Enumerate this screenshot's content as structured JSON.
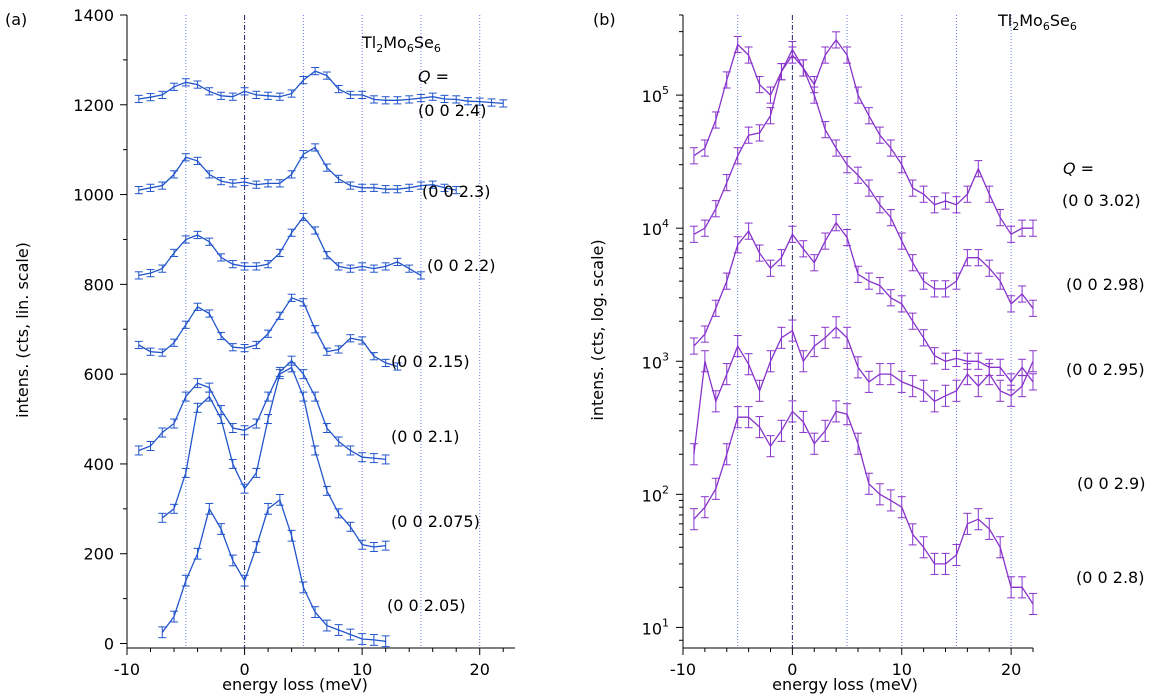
{
  "chart_data": [
    {
      "type": "line",
      "panel_label": "(a)",
      "formula": {
        "parts": [
          "Tl",
          "2",
          "Mo",
          "6",
          "Se",
          "6"
        ]
      },
      "q_label": "Q",
      "q_equals": "=",
      "xlabel": "energy loss (meV)",
      "ylabel": "intens. (cts, lin. scale)",
      "xlim": [
        -10,
        23
      ],
      "ylim": [
        -10,
        1400
      ],
      "y_scale": "linear",
      "x_ticks": [
        -10,
        0,
        10,
        20
      ],
      "y_ticks": [
        0,
        200,
        400,
        600,
        800,
        1000,
        1200,
        1400
      ],
      "dotted_verticals": [
        -5,
        5,
        10,
        15,
        20
      ],
      "dashdot_vertical": 0,
      "color": "#2255cc",
      "series": [
        {
          "name": "(0 0 2.4)",
          "x": [
            -9,
            -8,
            -7,
            -6,
            -5,
            -4,
            -3,
            -2,
            -1,
            0,
            1,
            2,
            3,
            4,
            5,
            6,
            7,
            8,
            9,
            10,
            11,
            12,
            13,
            14,
            15,
            16,
            17,
            18,
            19,
            20,
            21,
            22
          ],
          "y": [
            1213,
            1217,
            1222,
            1240,
            1250,
            1245,
            1230,
            1220,
            1218,
            1230,
            1222,
            1220,
            1218,
            1225,
            1255,
            1275,
            1265,
            1235,
            1222,
            1222,
            1212,
            1210,
            1210,
            1212,
            1215,
            1218,
            1213,
            1212,
            1208,
            1207,
            1205,
            1203
          ],
          "err": 8
        },
        {
          "name": "(0 0 2.3)",
          "x": [
            -9,
            -8,
            -7,
            -6,
            -5,
            -4,
            -3,
            -2,
            -1,
            0,
            1,
            2,
            3,
            4,
            5,
            6,
            7,
            8,
            9,
            10,
            11,
            12,
            13,
            14,
            15,
            16,
            17,
            18
          ],
          "y": [
            1010,
            1015,
            1020,
            1045,
            1083,
            1075,
            1045,
            1030,
            1025,
            1028,
            1022,
            1025,
            1025,
            1045,
            1090,
            1105,
            1060,
            1035,
            1020,
            1015,
            1015,
            1012,
            1012,
            1015,
            1020,
            1022,
            1015,
            1010
          ],
          "err": 8
        },
        {
          "name": "(0 0 2.2)",
          "x": [
            -9,
            -8,
            -7,
            -6,
            -5,
            -4,
            -3,
            -2,
            -1,
            0,
            1,
            2,
            3,
            4,
            5,
            6,
            7,
            8,
            9,
            10,
            11,
            12,
            13,
            14,
            15
          ],
          "y": [
            820,
            825,
            835,
            870,
            900,
            910,
            895,
            860,
            845,
            840,
            840,
            845,
            870,
            915,
            950,
            920,
            865,
            840,
            835,
            840,
            835,
            840,
            850,
            835,
            820
          ],
          "err": 8
        },
        {
          "name": "(0 0 2.15)",
          "x": [
            -9,
            -8,
            -7,
            -6,
            -5,
            -4,
            -3,
            -2,
            -1,
            0,
            1,
            2,
            3,
            4,
            5,
            6,
            7,
            8,
            9,
            10,
            11,
            12,
            13
          ],
          "y": [
            665,
            650,
            648,
            670,
            710,
            750,
            735,
            685,
            660,
            658,
            665,
            690,
            730,
            770,
            760,
            700,
            650,
            655,
            680,
            675,
            640,
            625,
            617
          ],
          "err": 8
        },
        {
          "name": "(0 0 2.1)",
          "x": [
            -9,
            -8,
            -7,
            -6,
            -5,
            -4,
            -3,
            -2,
            -1,
            0,
            1,
            2,
            3,
            4,
            5,
            6,
            7,
            8,
            9,
            10,
            11,
            12
          ],
          "y": [
            430,
            440,
            470,
            490,
            550,
            580,
            570,
            520,
            480,
            475,
            490,
            550,
            605,
            630,
            600,
            550,
            480,
            450,
            430,
            415,
            413,
            410
          ],
          "err": 10
        },
        {
          "name": "(0 0 2.075)",
          "x": [
            -7,
            -6,
            -5,
            -4,
            -3,
            -2,
            -1,
            0,
            1,
            2,
            3,
            4,
            5,
            6,
            7,
            8,
            9,
            10,
            11,
            12
          ],
          "y": [
            280,
            300,
            380,
            525,
            550,
            500,
            400,
            345,
            380,
            500,
            600,
            615,
            550,
            430,
            340,
            290,
            260,
            220,
            215,
            218
          ],
          "err": 10
        },
        {
          "name": "(0 0 2.05)",
          "x": [
            -7,
            -6,
            -5,
            -4,
            -3,
            -2,
            -1,
            0,
            1,
            2,
            3,
            4,
            5,
            6,
            7,
            8,
            9,
            10,
            11,
            12
          ],
          "y": [
            25,
            60,
            140,
            200,
            300,
            255,
            185,
            140,
            215,
            300,
            320,
            240,
            125,
            70,
            40,
            30,
            20,
            10,
            8,
            5
          ],
          "err": 12
        }
      ]
    },
    {
      "type": "line",
      "panel_label": "(b)",
      "formula": {
        "parts": [
          "Tl",
          "2",
          "Mo",
          "6",
          "Se",
          "6"
        ]
      },
      "q_label": "Q",
      "q_equals": "=",
      "xlabel": "energy loss (meV)",
      "ylabel": "intens. (cts, log. scale)",
      "xlim": [
        -10,
        22
      ],
      "ylim": [
        7,
        400000
      ],
      "y_scale": "log",
      "x_ticks": [
        -10,
        0,
        10,
        20
      ],
      "y_ticks": [
        10,
        100,
        1000,
        10000,
        100000
      ],
      "y_tick_exponents": [
        "1",
        "2",
        "3",
        "4",
        "5"
      ],
      "y_tick_base": "10",
      "dotted_verticals": [
        -5,
        5,
        10,
        15,
        20
      ],
      "dashdot_vertical": 0,
      "color": "#8833cc",
      "series": [
        {
          "name": "(0 0 3.02)",
          "x": [
            -9,
            -8,
            -7,
            -6,
            -5,
            -4,
            -3,
            -2,
            -1,
            0,
            1,
            2,
            3,
            4,
            5,
            6,
            7,
            8,
            9,
            10,
            11,
            12,
            13,
            14,
            15,
            16,
            17,
            18,
            19,
            20,
            21,
            22
          ],
          "y": [
            35000,
            40000,
            65000,
            130000,
            240000,
            200000,
            120000,
            100000,
            150000,
            200000,
            160000,
            120000,
            200000,
            260000,
            200000,
            100000,
            70000,
            50000,
            40000,
            30000,
            20000,
            18000,
            15000,
            16000,
            15000,
            18000,
            28000,
            18000,
            12000,
            9000,
            10000,
            10000
          ],
          "err": 0.15
        },
        {
          "name": "(0 0 2.98)",
          "x": [
            -9,
            -8,
            -7,
            -6,
            -5,
            -4,
            -3,
            -2,
            -1,
            0,
            1,
            2,
            3,
            4,
            5,
            6,
            7,
            8,
            9,
            10,
            11,
            12,
            13,
            14,
            15,
            16,
            17,
            18,
            19,
            20,
            21,
            22
          ],
          "y": [
            9000,
            10000,
            14000,
            22000,
            35000,
            50000,
            52000,
            70000,
            150000,
            220000,
            160000,
            100000,
            55000,
            40000,
            30000,
            25000,
            20000,
            15000,
            12000,
            8000,
            5500,
            4000,
            3500,
            3500,
            4000,
            6000,
            6000,
            5000,
            4000,
            2700,
            3200,
            2500
          ],
          "err": 0.15
        },
        {
          "name": "(0 0 2.95)",
          "x": [
            -9,
            -8,
            -7,
            -6,
            -5,
            -4,
            -3,
            -2,
            -1,
            0,
            1,
            2,
            3,
            4,
            5,
            6,
            7,
            8,
            9,
            10,
            11,
            12,
            13,
            14,
            15,
            16,
            17,
            18,
            19,
            20,
            21,
            22
          ],
          "y": [
            1300,
            1600,
            2500,
            4000,
            7500,
            9500,
            6500,
            5000,
            6000,
            9000,
            7000,
            5500,
            8000,
            11000,
            8500,
            4500,
            4000,
            3700,
            3000,
            2700,
            2000,
            1500,
            1100,
            1000,
            1050,
            1000,
            1000,
            900,
            900,
            700,
            900,
            700
          ],
          "err": 0.15
        },
        {
          "name": "(0 0 2.9)",
          "x": [
            -9,
            -8,
            -7,
            -6,
            -5,
            -4,
            -3,
            -2,
            -1,
            0,
            1,
            2,
            3,
            4,
            5,
            6,
            7,
            8,
            9,
            10,
            11,
            12,
            13,
            14,
            15,
            16,
            17,
            18,
            19,
            20,
            21,
            22
          ],
          "y": [
            200,
            1000,
            500,
            800,
            1300,
            950,
            600,
            1000,
            1500,
            1700,
            1000,
            1300,
            1500,
            1800,
            1500,
            900,
            700,
            800,
            800,
            700,
            650,
            600,
            500,
            550,
            600,
            800,
            650,
            800,
            600,
            550,
            650,
            1000
          ],
          "err": 0.2
        },
        {
          "name": "(0 0 2.8)",
          "x": [
            -9,
            -8,
            -7,
            -6,
            -5,
            -4,
            -3,
            -2,
            -1,
            0,
            1,
            2,
            3,
            4,
            5,
            6,
            7,
            8,
            9,
            10,
            11,
            12,
            13,
            14,
            15,
            16,
            17,
            18,
            19,
            20,
            21,
            22
          ],
          "y": [
            65,
            80,
            110,
            200,
            380,
            380,
            320,
            230,
            300,
            420,
            350,
            240,
            300,
            420,
            400,
            240,
            120,
            100,
            90,
            80,
            50,
            40,
            30,
            30,
            35,
            60,
            65,
            55,
            40,
            20,
            20,
            15
          ],
          "err": 0.2
        }
      ]
    }
  ]
}
